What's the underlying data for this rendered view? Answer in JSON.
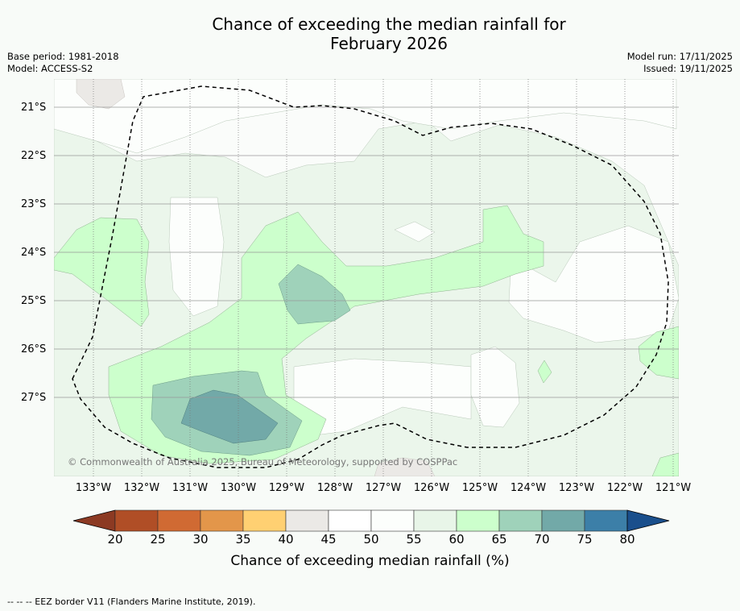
{
  "chart_data": {
    "type": "heatmap",
    "title_line1": "Chance of exceeding the median rainfall for",
    "title_line2": "February 2026",
    "base_period": "Base period: 1981-2018",
    "model": "Model: ACCESS-S2",
    "model_run": "Model run: 17/11/2025",
    "issued": "Issued: 19/11/2025",
    "y_ticks": [
      "21°S",
      "22°S",
      "23°S",
      "24°S",
      "25°S",
      "26°S",
      "27°S"
    ],
    "x_ticks": [
      "133°W",
      "132°W",
      "131°W",
      "130°W",
      "129°W",
      "128°W",
      "127°W",
      "126°W",
      "125°W",
      "124°W",
      "123°W",
      "122°W",
      "121°W"
    ],
    "colorbar": {
      "title": "Chance of exceeding median rainfall (%)",
      "ticks": [
        "20",
        "25",
        "30",
        "35",
        "40",
        "45",
        "50",
        "55",
        "60",
        "65",
        "70",
        "75",
        "80"
      ],
      "colors": [
        "#8c3a23",
        "#b04e26",
        "#d06a33",
        "#e3964a",
        "#ffd072",
        "#ebe9e6",
        "#ffffff",
        "#fcfefc",
        "#e8f5e8",
        "#ccffcc",
        "#9fd2ba",
        "#72a9a8",
        "#3c7fa8",
        "#1a4f8c"
      ]
    },
    "regions": [
      {
        "name": "high-60-65",
        "range": "60-65%"
      },
      {
        "name": "high-65-70",
        "range": "65-70%"
      },
      {
        "name": "high-70-75",
        "range": "70-75%"
      }
    ],
    "copyright": "© Commonwealth of Australia 2025, Bureau of Meteorology, supported by COSPPac",
    "footer": "-- -- -- EEZ border V11 (Flanders Marine Institute, 2019)."
  }
}
